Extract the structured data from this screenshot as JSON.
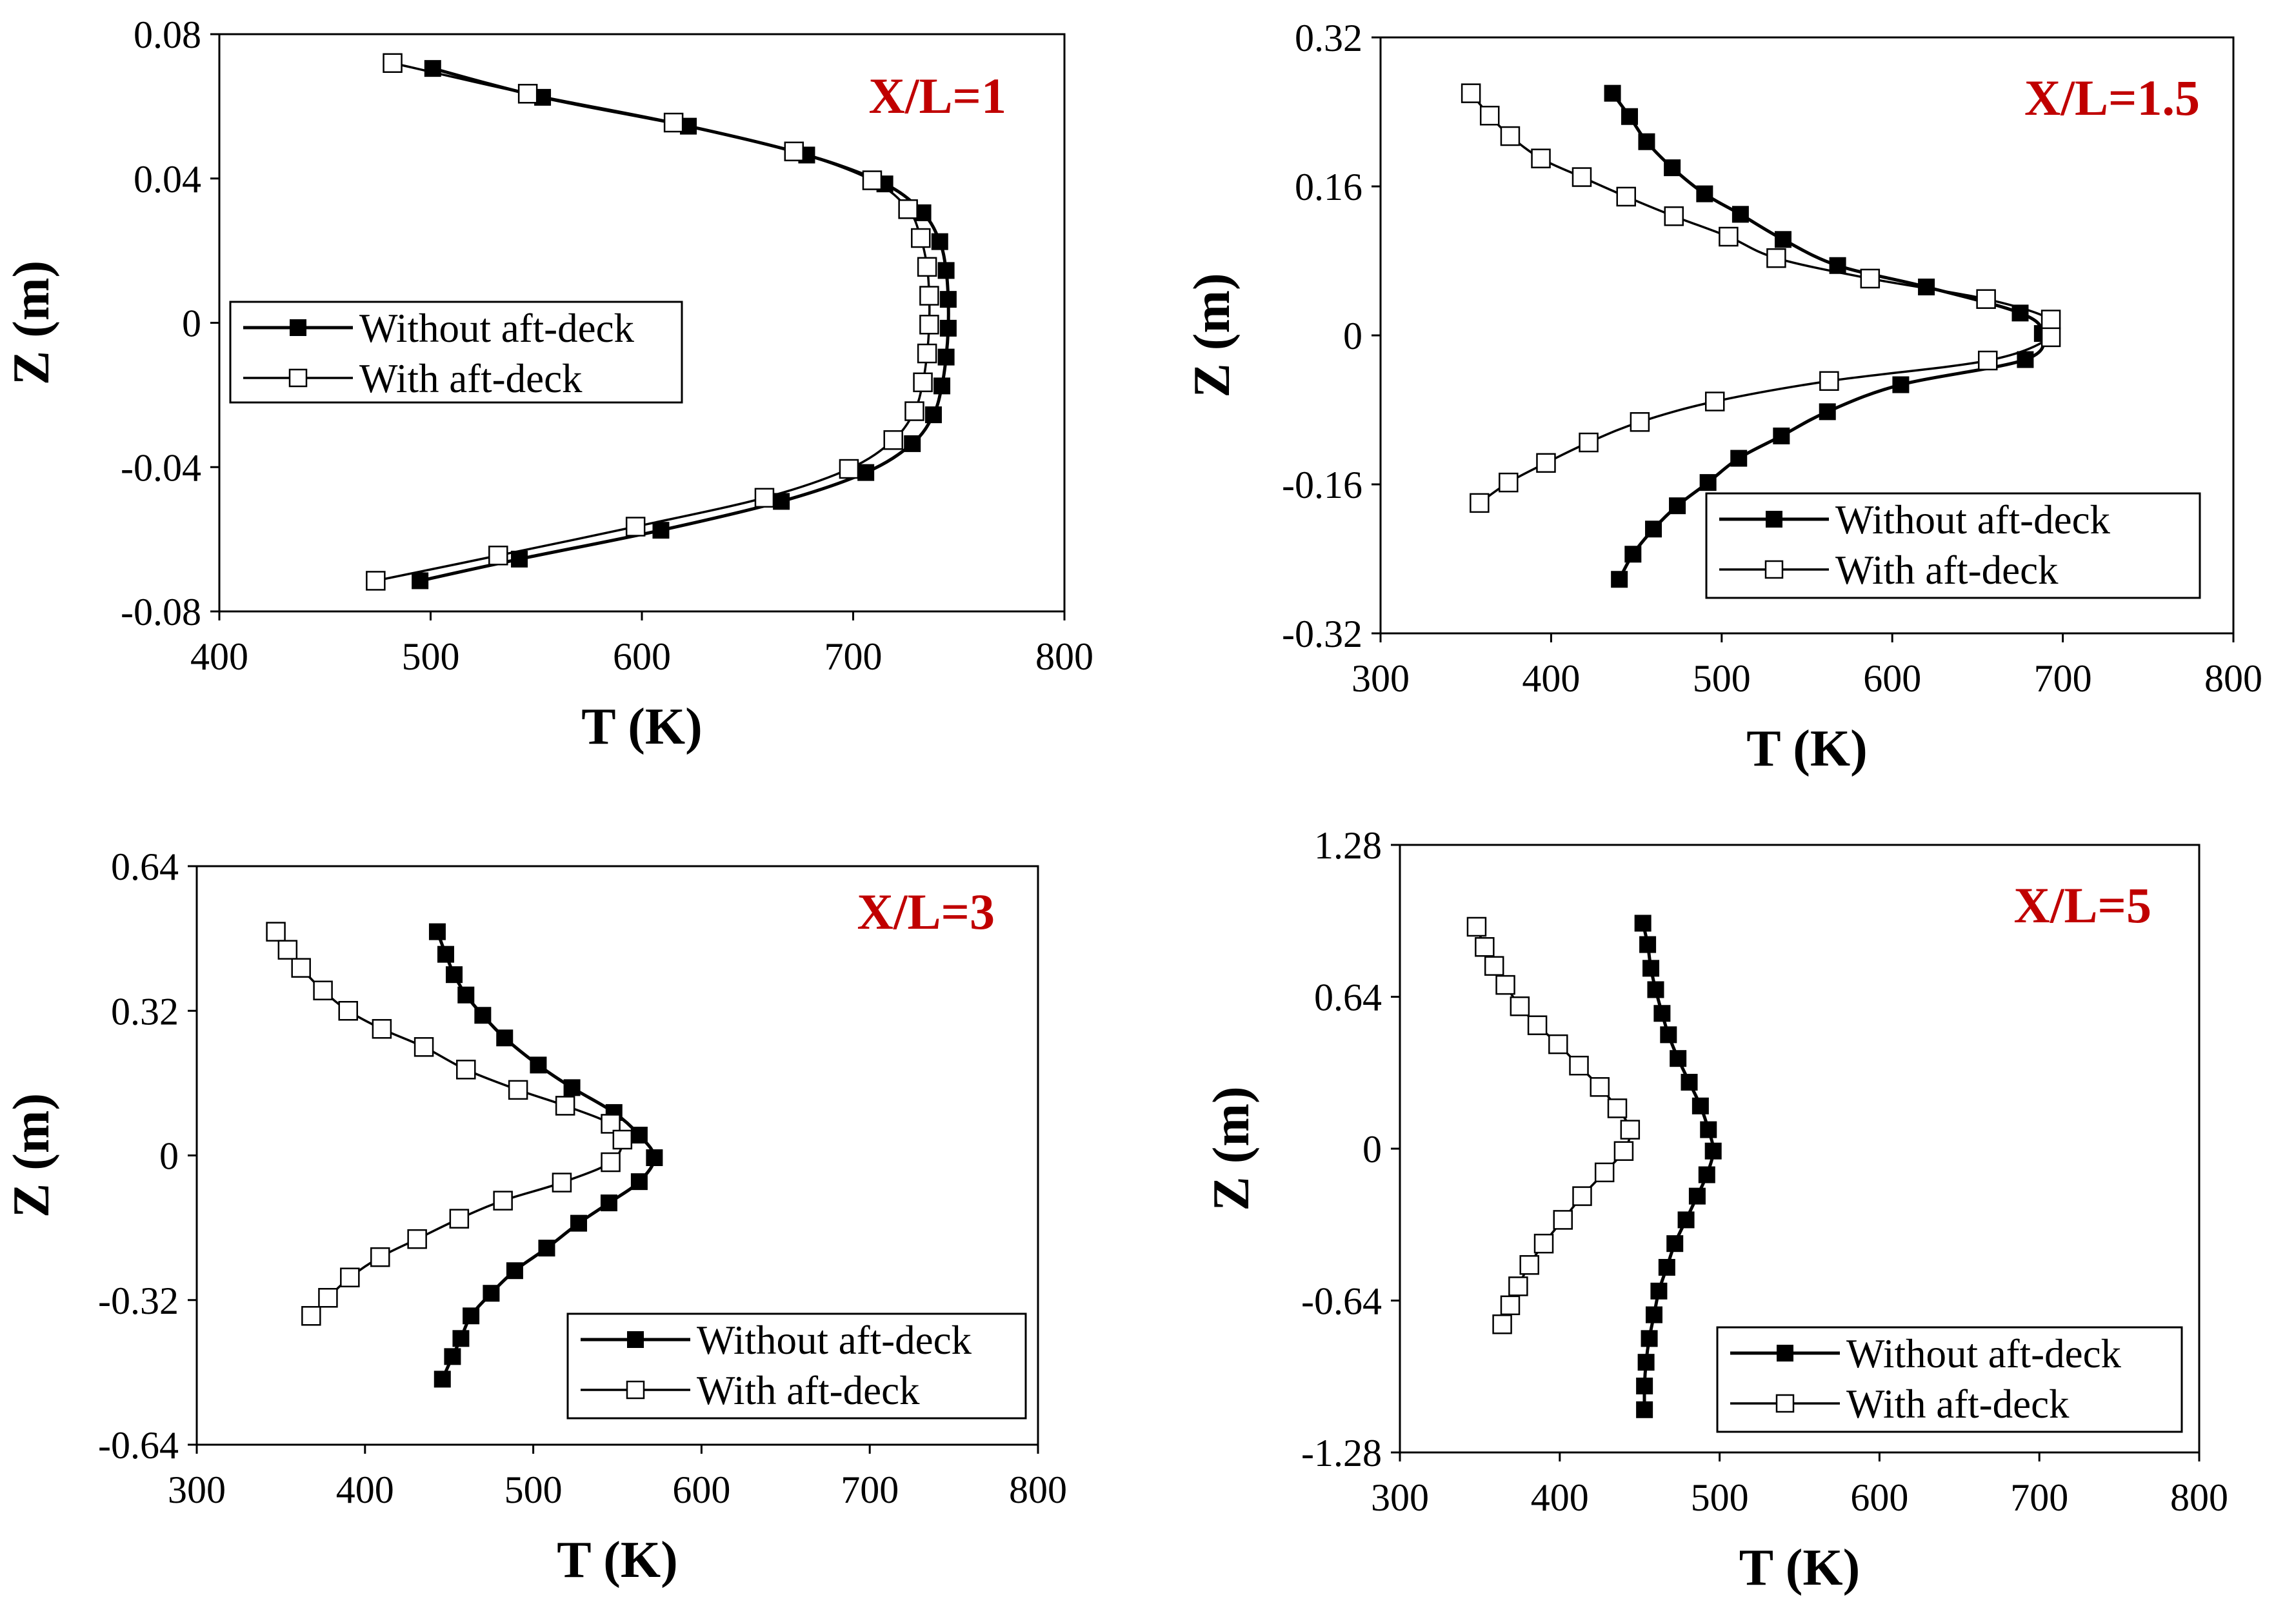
{
  "legend": {
    "without_label": "Without aft-deck",
    "with_label": "With aft-deck"
  },
  "colors": {
    "series_line": "#000000",
    "filled_marker": "#000000",
    "hollow_marker_fill": "#ffffff",
    "panel_label": "#c00000",
    "frame": "#000000"
  },
  "chart_data": [
    {
      "type": "line",
      "title": "X/L=1",
      "xlabel": "T (K)",
      "ylabel": "Z (m)",
      "xlim": [
        400,
        800
      ],
      "ylim": [
        -0.08,
        0.08
      ],
      "xticks": [
        "400",
        "500",
        "600",
        "700",
        "800"
      ],
      "yticks": [
        "-0.08",
        "-0.04",
        "0",
        "0.04",
        "0.08"
      ],
      "legend_position": "middle-left",
      "series": [
        {
          "name": "Without aft-deck",
          "marker": "filled-square",
          "points": [
            [
              501,
              0.0705
            ],
            [
              553,
              0.0625
            ],
            [
              622,
              0.0545
            ],
            [
              678,
              0.0465
            ],
            [
              715,
              0.0385
            ],
            [
              733,
              0.0305
            ],
            [
              741,
              0.0225
            ],
            [
              744,
              0.0145
            ],
            [
              745,
              0.0065
            ],
            [
              745,
              -0.0015
            ],
            [
              744,
              -0.0095
            ],
            [
              742,
              -0.0175
            ],
            [
              738,
              -0.0255
            ],
            [
              728,
              -0.0335
            ],
            [
              706,
              -0.0415
            ],
            [
              666,
              -0.0495
            ],
            [
              609,
              -0.0575
            ],
            [
              542,
              -0.0655
            ],
            [
              495,
              -0.0715
            ]
          ]
        },
        {
          "name": "With aft-deck",
          "marker": "hollow-square",
          "points": [
            [
              482,
              0.072
            ],
            [
              546,
              0.0635
            ],
            [
              615,
              0.0555
            ],
            [
              672,
              0.0475
            ],
            [
              709,
              0.0395
            ],
            [
              726,
              0.0315
            ],
            [
              732,
              0.0235
            ],
            [
              735,
              0.0155
            ],
            [
              736,
              0.0075
            ],
            [
              736,
              -0.0005
            ],
            [
              735,
              -0.0085
            ],
            [
              733,
              -0.0165
            ],
            [
              729,
              -0.0245
            ],
            [
              719,
              -0.0325
            ],
            [
              698,
              -0.0405
            ],
            [
              658,
              -0.0485
            ],
            [
              597,
              -0.0565
            ],
            [
              532,
              -0.0645
            ],
            [
              474,
              -0.0715
            ]
          ]
        }
      ]
    },
    {
      "type": "line",
      "title": "X/L=1.5",
      "xlabel": "T (K)",
      "ylabel": "Z (m)",
      "xlim": [
        300,
        800
      ],
      "ylim": [
        -0.32,
        0.32
      ],
      "xticks": [
        "300",
        "400",
        "500",
        "600",
        "700",
        "800"
      ],
      "yticks": [
        "-0.32",
        "-0.16",
        "0",
        "0.16",
        "0.32"
      ],
      "legend_position": "bottom-right",
      "series": [
        {
          "name": "Without aft-deck",
          "marker": "filled-square",
          "points": [
            [
              436,
              0.26
            ],
            [
              446,
              0.235
            ],
            [
              456,
              0.208
            ],
            [
              471,
              0.18
            ],
            [
              490,
              0.152
            ],
            [
              511,
              0.13
            ],
            [
              536,
              0.103
            ],
            [
              568,
              0.075
            ],
            [
              620,
              0.052
            ],
            [
              675,
              0.024
            ],
            [
              688,
              0.002
            ],
            [
              678,
              -0.026
            ],
            [
              605,
              -0.053
            ],
            [
              562,
              -0.082
            ],
            [
              535,
              -0.108
            ],
            [
              510,
              -0.132
            ],
            [
              492,
              -0.158
            ],
            [
              474,
              -0.183
            ],
            [
              460,
              -0.208
            ],
            [
              448,
              -0.235
            ],
            [
              440,
              -0.262
            ]
          ]
        },
        {
          "name": "With aft-deck",
          "marker": "hollow-square",
          "points": [
            [
              353,
              0.26
            ],
            [
              364,
              0.236
            ],
            [
              376,
              0.214
            ],
            [
              394,
              0.19
            ],
            [
              418,
              0.17
            ],
            [
              444,
              0.149
            ],
            [
              472,
              0.128
            ],
            [
              504,
              0.106
            ],
            [
              532,
              0.083
            ],
            [
              587,
              0.061
            ],
            [
              655,
              0.039
            ],
            [
              693,
              0.017
            ],
            [
              693,
              -0.002
            ],
            [
              656,
              -0.027
            ],
            [
              563,
              -0.049
            ],
            [
              496,
              -0.071
            ],
            [
              452,
              -0.093
            ],
            [
              422,
              -0.115
            ],
            [
              397,
              -0.137
            ],
            [
              375,
              -0.158
            ],
            [
              358,
              -0.18
            ]
          ]
        }
      ]
    },
    {
      "type": "line",
      "title": "X/L=3",
      "xlabel": "T (K)",
      "ylabel": "Z (m)",
      "xlim": [
        300,
        800
      ],
      "ylim": [
        -0.64,
        0.64
      ],
      "xticks": [
        "300",
        "400",
        "500",
        "600",
        "700",
        "800"
      ],
      "yticks": [
        "-0.64",
        "-0.32",
        "0",
        "0.32",
        "0.64"
      ],
      "legend_position": "bottom-right",
      "series": [
        {
          "name": "Without aft-deck",
          "marker": "filled-square",
          "points": [
            [
              443,
              0.495
            ],
            [
              448,
              0.445
            ],
            [
              453,
              0.4
            ],
            [
              460,
              0.355
            ],
            [
              470,
              0.31
            ],
            [
              483,
              0.26
            ],
            [
              503,
              0.2
            ],
            [
              523,
              0.15
            ],
            [
              548,
              0.095
            ],
            [
              563,
              0.045
            ],
            [
              572,
              -0.005
            ],
            [
              563,
              -0.058
            ],
            [
              545,
              -0.105
            ],
            [
              527,
              -0.15
            ],
            [
              508,
              -0.205
            ],
            [
              489,
              -0.255
            ],
            [
              475,
              -0.305
            ],
            [
              463,
              -0.355
            ],
            [
              457,
              -0.405
            ],
            [
              452,
              -0.445
            ],
            [
              446,
              -0.495
            ]
          ]
        },
        {
          "name": "With aft-deck",
          "marker": "hollow-square",
          "points": [
            [
              347,
              0.495
            ],
            [
              354,
              0.455
            ],
            [
              362,
              0.415
            ],
            [
              375,
              0.365
            ],
            [
              390,
              0.32
            ],
            [
              410,
              0.28
            ],
            [
              435,
              0.24
            ],
            [
              460,
              0.19
            ],
            [
              491,
              0.145
            ],
            [
              519,
              0.11
            ],
            [
              546,
              0.07
            ],
            [
              553,
              0.035
            ],
            [
              546,
              -0.015
            ],
            [
              517,
              -0.06
            ],
            [
              482,
              -0.1
            ],
            [
              456,
              -0.14
            ],
            [
              431,
              -0.185
            ],
            [
              409,
              -0.225
            ],
            [
              391,
              -0.27
            ],
            [
              378,
              -0.315
            ],
            [
              368,
              -0.355
            ]
          ]
        }
      ]
    },
    {
      "type": "line",
      "title": "X/L=5",
      "xlabel": "T (K)",
      "ylabel": "Z (m)",
      "xlim": [
        300,
        800
      ],
      "ylim": [
        -1.28,
        1.28
      ],
      "xticks": [
        "300",
        "400",
        "500",
        "600",
        "700",
        "800"
      ],
      "yticks": [
        "-1.28",
        "-0.64",
        "0",
        "0.64",
        "1.28"
      ],
      "legend_position": "bottom-right",
      "series": [
        {
          "name": "Without aft-deck",
          "marker": "filled-square",
          "points": [
            [
              452,
              0.95
            ],
            [
              455,
              0.86
            ],
            [
              457,
              0.76
            ],
            [
              460,
              0.67
            ],
            [
              464,
              0.57
            ],
            [
              468,
              0.48
            ],
            [
              474,
              0.38
            ],
            [
              481,
              0.28
            ],
            [
              488,
              0.18
            ],
            [
              493,
              0.08
            ],
            [
              496,
              -0.01
            ],
            [
              492,
              -0.11
            ],
            [
              486,
              -0.2
            ],
            [
              479,
              -0.3
            ],
            [
              472,
              -0.4
            ],
            [
              467,
              -0.5
            ],
            [
              462,
              -0.6
            ],
            [
              459,
              -0.7
            ],
            [
              456,
              -0.8
            ],
            [
              454,
              -0.9
            ],
            [
              453,
              -1.0
            ],
            [
              453,
              -1.1
            ]
          ]
        },
        {
          "name": "With aft-deck",
          "marker": "hollow-square",
          "points": [
            [
              348,
              0.935
            ],
            [
              353,
              0.85
            ],
            [
              359,
              0.77
            ],
            [
              366,
              0.69
            ],
            [
              375,
              0.6
            ],
            [
              386,
              0.52
            ],
            [
              399,
              0.44
            ],
            [
              412,
              0.35
            ],
            [
              425,
              0.26
            ],
            [
              436,
              0.17
            ],
            [
              444,
              0.08
            ],
            [
              440,
              -0.01
            ],
            [
              428,
              -0.1
            ],
            [
              414,
              -0.2
            ],
            [
              402,
              -0.3
            ],
            [
              390,
              -0.4
            ],
            [
              381,
              -0.49
            ],
            [
              374,
              -0.58
            ],
            [
              369,
              -0.66
            ],
            [
              364,
              -0.74
            ]
          ]
        }
      ]
    }
  ]
}
